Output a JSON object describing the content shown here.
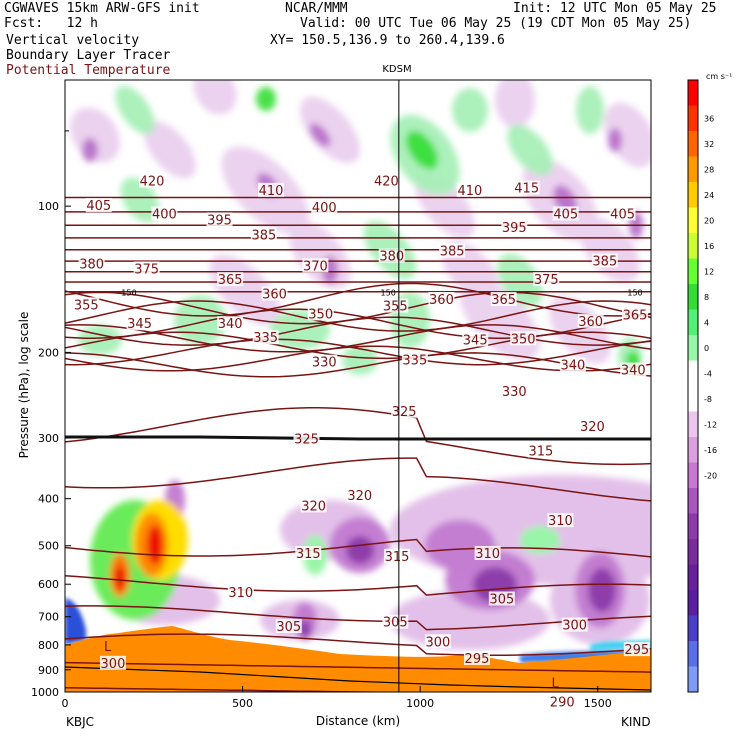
{
  "header": {
    "line1_left": "CGWAVES 15km ARW-GFS init",
    "line1_center": "NCAR/MMM",
    "line1_right": "Init: 12 UTC Mon 05 May 25",
    "line2_left": "Fcst:   12 h",
    "line2_right": "Valid: 00 UTC Tue 06 May 25 (19 CDT Mon 05 May 25)",
    "line3_left": "Vertical velocity",
    "line3_right": "XY= 150.5,136.9 to 260.4,139.6",
    "line4_left": "Boundary Layer Tracer",
    "line5_left": "Potential Temperature",
    "potential_temperature_color": "#7a1414"
  },
  "chart_data": {
    "type": "heatmap",
    "title": "KDSM",
    "xlabel": "Distance (km)",
    "ylabel": "Pressure (hPa), log scale",
    "x_range": [
      0,
      1650
    ],
    "x_ticks": [
      0,
      500,
      1000,
      1500
    ],
    "x_tick_labels": [
      "0",
      "500",
      "1000",
      "1500"
    ],
    "y_scale": "log",
    "y_range": [
      1000,
      55
    ],
    "y_ticks": [
      100,
      200,
      300,
      400,
      500,
      600,
      700,
      800,
      900,
      1000
    ],
    "y_tick_labels": [
      "100",
      "200",
      "300",
      "400",
      "500",
      "600",
      "700",
      "800",
      "900",
      "1000"
    ],
    "start_label": "KBJC",
    "end_label": "KIND",
    "station_marker_x": 940,
    "colorbar": {
      "unit": "cm s⁻¹",
      "tick_labels": [
        "36",
        "32",
        "28",
        "24",
        "20",
        "16",
        "12",
        "8",
        "4",
        "0",
        "-4",
        "-8",
        "-12",
        "-16",
        "-20"
      ],
      "colors": [
        "#ff0000",
        "#ff3300",
        "#ff6600",
        "#ff9900",
        "#ffcc00",
        "#ffff33",
        "#ccff33",
        "#66ff33",
        "#33dd33",
        "#55ee77",
        "#99f5a8",
        "#ffffff",
        "#ffffff",
        "#ecc6ee",
        "#dca0e0",
        "#c878d0",
        "#a855bd",
        "#8c3aa8",
        "#7a2c9a",
        "#68209a",
        "#5a1fa0",
        "#4b3fc8",
        "#5a6ee8",
        "#7e9cf5"
      ]
    },
    "theta_labels": [
      {
        "value": "420",
        "x": 245,
        "p": 89
      },
      {
        "value": "420",
        "x": 905,
        "p": 89
      },
      {
        "value": "410",
        "x": 580,
        "p": 93
      },
      {
        "value": "410",
        "x": 1140,
        "p": 93
      },
      {
        "value": "415",
        "x": 1300,
        "p": 92
      },
      {
        "value": "405",
        "x": 95,
        "p": 100
      },
      {
        "value": "400",
        "x": 280,
        "p": 104
      },
      {
        "value": "395",
        "x": 435,
        "p": 107
      },
      {
        "value": "400",
        "x": 730,
        "p": 101
      },
      {
        "value": "405",
        "x": 1410,
        "p": 104
      },
      {
        "value": "405",
        "x": 1570,
        "p": 104
      },
      {
        "value": "395",
        "x": 1265,
        "p": 111
      },
      {
        "value": "385",
        "x": 560,
        "p": 115
      },
      {
        "value": "385",
        "x": 1090,
        "p": 124
      },
      {
        "value": "385",
        "x": 1520,
        "p": 130
      },
      {
        "value": "380",
        "x": 75,
        "p": 132
      },
      {
        "value": "380",
        "x": 920,
        "p": 127
      },
      {
        "value": "375",
        "x": 230,
        "p": 135
      },
      {
        "value": "370",
        "x": 705,
        "p": 133
      },
      {
        "value": "365",
        "x": 465,
        "p": 142
      },
      {
        "value": "375",
        "x": 1355,
        "p": 142
      },
      {
        "value": "360",
        "x": 590,
        "p": 152
      },
      {
        "value": "360",
        "x": 1060,
        "p": 156
      },
      {
        "value": "365",
        "x": 1235,
        "p": 156
      },
      {
        "value": "355",
        "x": 60,
        "p": 160
      },
      {
        "value": "355",
        "x": 930,
        "p": 161
      },
      {
        "value": "350",
        "x": 720,
        "p": 167
      },
      {
        "value": "345",
        "x": 210,
        "p": 175
      },
      {
        "value": "340",
        "x": 465,
        "p": 175
      },
      {
        "value": "360",
        "x": 1480,
        "p": 173
      },
      {
        "value": "365",
        "x": 1605,
        "p": 168
      },
      {
        "value": "335",
        "x": 565,
        "p": 187
      },
      {
        "value": "345",
        "x": 1155,
        "p": 189
      },
      {
        "value": "350",
        "x": 1290,
        "p": 188
      },
      {
        "value": "330",
        "x": 730,
        "p": 210
      },
      {
        "value": "335",
        "x": 985,
        "p": 208
      },
      {
        "value": "340",
        "x": 1430,
        "p": 213
      },
      {
        "value": "340",
        "x": 1600,
        "p": 218
      },
      {
        "value": "330",
        "x": 1265,
        "p": 241
      },
      {
        "value": "325",
        "x": 955,
        "p": 265
      },
      {
        "value": "320",
        "x": 1485,
        "p": 285
      },
      {
        "value": "325",
        "x": 680,
        "p": 302
      },
      {
        "value": "315",
        "x": 1340,
        "p": 320
      },
      {
        "value": "320",
        "x": 700,
        "p": 415
      },
      {
        "value": "320",
        "x": 830,
        "p": 395
      },
      {
        "value": "310",
        "x": 1395,
        "p": 445
      },
      {
        "value": "310",
        "x": 1190,
        "p": 520
      },
      {
        "value": "315",
        "x": 685,
        "p": 520
      },
      {
        "value": "315",
        "x": 935,
        "p": 527
      },
      {
        "value": "310",
        "x": 495,
        "p": 625
      },
      {
        "value": "305",
        "x": 1230,
        "p": 645
      },
      {
        "value": "305",
        "x": 630,
        "p": 735
      },
      {
        "value": "305",
        "x": 930,
        "p": 720
      },
      {
        "value": "300",
        "x": 1435,
        "p": 730
      },
      {
        "value": "300",
        "x": 1050,
        "p": 790
      },
      {
        "value": "295",
        "x": 1160,
        "p": 855
      },
      {
        "value": "300",
        "x": 135,
        "p": 875
      },
      {
        "value": "295",
        "x": 1610,
        "p": 820
      },
      {
        "value": "290",
        "x": 1400,
        "p": 1050
      }
    ],
    "tropopause_labels": [
      {
        "value": "150",
        "x": 180,
        "p": 150
      },
      {
        "value": "150",
        "x": 910,
        "p": 150
      },
      {
        "value": "150",
        "x": 1605,
        "p": 150
      }
    ],
    "low_labels": [
      {
        "value": "L",
        "x": 120,
        "p": 805
      },
      {
        "value": "L",
        "x": 1380,
        "p": 955
      }
    ]
  }
}
